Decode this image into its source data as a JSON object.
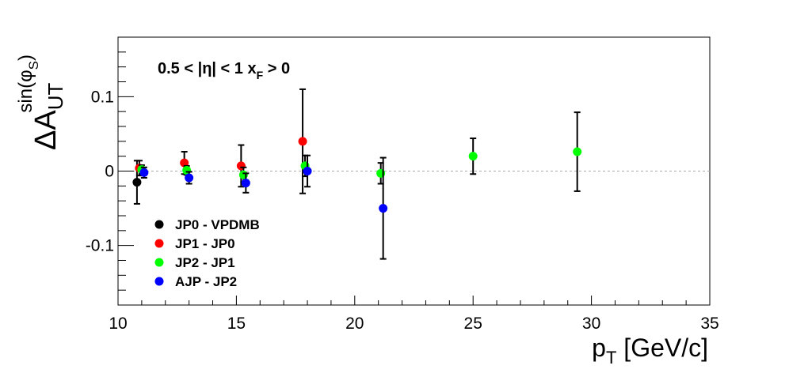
{
  "chart_data": {
    "type": "scatter",
    "title": "",
    "xlabel": "p_T [GeV/c]",
    "ylabel": "ΔA_UT^sin(φ_S)",
    "xlim": [
      10,
      35
    ],
    "ylim": [
      -0.18,
      0.18
    ],
    "x_ticks": [
      10,
      15,
      20,
      25,
      30,
      35
    ],
    "x_tick_labels": [
      "10",
      "15",
      "20",
      "25",
      "30",
      "35"
    ],
    "y_ticks": [
      -0.1,
      0,
      0.1
    ],
    "y_tick_labels": [
      "-0.1",
      "0",
      "0.1"
    ],
    "grid": false,
    "reference_line": 0,
    "legend_placement": "bottom-left",
    "annotation": {
      "text": "0.5 < |η| < 1   x",
      "sub": "F",
      "tail": " > 0"
    },
    "series": [
      {
        "name": "JP0 - VPDMB",
        "color": "#000000",
        "points": [
          {
            "x": 10.8,
            "y": -0.015,
            "err": 0.029
          }
        ]
      },
      {
        "name": "JP1 - JP0",
        "color": "#ff0000",
        "points": [
          {
            "x": 10.9,
            "y": 0.004,
            "err": 0.01
          },
          {
            "x": 12.8,
            "y": 0.011,
            "err": 0.015
          },
          {
            "x": 15.2,
            "y": 0.007,
            "err": 0.028
          },
          {
            "x": 17.8,
            "y": 0.04,
            "err": 0.07
          }
        ]
      },
      {
        "name": "JP2 - JP1",
        "color": "#00ff00",
        "points": [
          {
            "x": 11.0,
            "y": 0.002,
            "err": 0.006
          },
          {
            "x": 12.9,
            "y": 0.001,
            "err": 0.006
          },
          {
            "x": 15.3,
            "y": -0.005,
            "err": 0.01
          },
          {
            "x": 17.9,
            "y": 0.007,
            "err": 0.014
          },
          {
            "x": 21.1,
            "y": -0.003,
            "err": 0.014
          },
          {
            "x": 25.0,
            "y": 0.02,
            "err": 0.024
          },
          {
            "x": 29.4,
            "y": 0.026,
            "err": 0.053
          }
        ]
      },
      {
        "name": "AJP - JP2",
        "color": "#0000ff",
        "points": [
          {
            "x": 11.1,
            "y": -0.002,
            "err": 0.007
          },
          {
            "x": 13.0,
            "y": -0.009,
            "err": 0.008
          },
          {
            "x": 15.4,
            "y": -0.016,
            "err": 0.013
          },
          {
            "x": 18.0,
            "y": 0.0,
            "err": 0.021
          },
          {
            "x": 21.2,
            "y": -0.05,
            "err": 0.068
          }
        ]
      }
    ]
  }
}
